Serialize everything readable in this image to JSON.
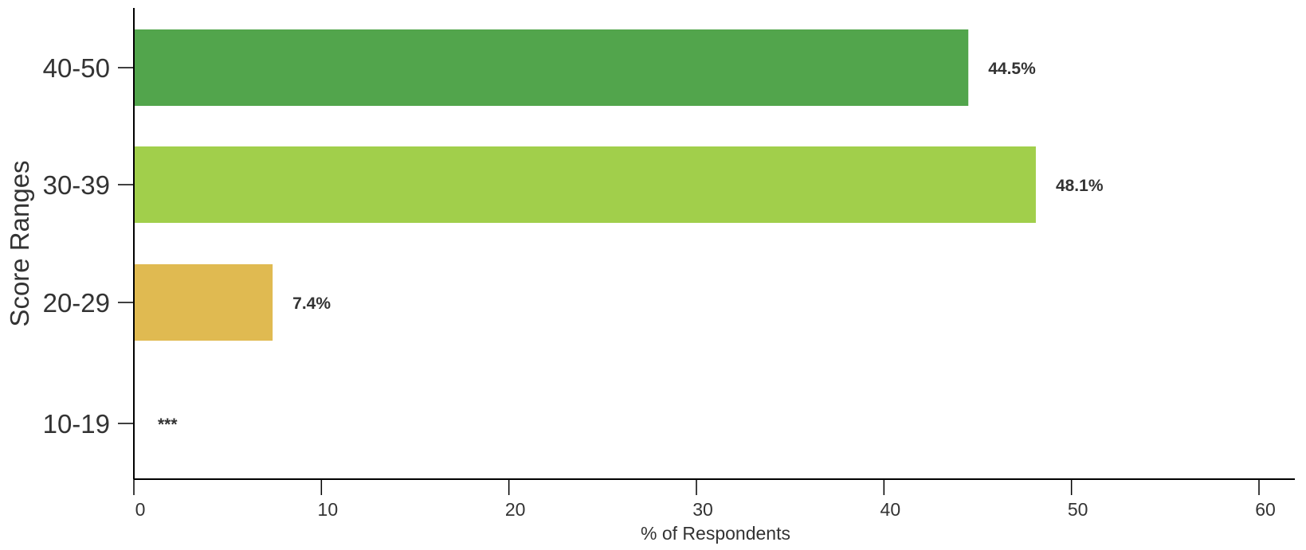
{
  "chart_data": {
    "type": "bar",
    "orientation": "horizontal",
    "title": "",
    "xlabel": "% of Respondents",
    "ylabel": "Score Ranges",
    "xlim": [
      0,
      62
    ],
    "x_ticks": [
      0,
      10,
      20,
      30,
      40,
      50,
      60
    ],
    "grid": false,
    "categories": [
      "40-50",
      "30-39",
      "20-29",
      "10-19"
    ],
    "values": [
      44.5,
      48.1,
      7.4,
      null
    ],
    "value_labels": [
      "44.5%",
      "48.1%",
      "7.4%",
      "***"
    ],
    "colors": [
      "#52a54c",
      "#a1cf4b",
      "#e0ba51",
      "#ffffff"
    ]
  }
}
